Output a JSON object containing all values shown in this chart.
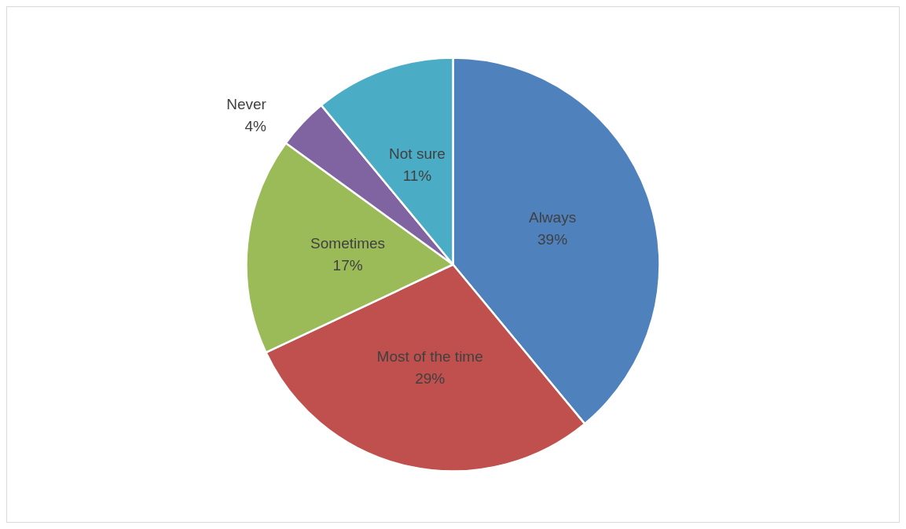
{
  "chart_data": {
    "type": "pie",
    "categories": [
      "Always",
      "Most of the time",
      "Sometimes",
      "Never",
      "Not sure"
    ],
    "values": [
      39,
      29,
      17,
      4,
      11
    ],
    "colors": [
      "#4f81bd",
      "#c0504d",
      "#9bbb59",
      "#8064a2",
      "#4bacc6"
    ],
    "value_labels": [
      "39%",
      "29%",
      "17%",
      "4%",
      "11%"
    ],
    "legend": false
  }
}
